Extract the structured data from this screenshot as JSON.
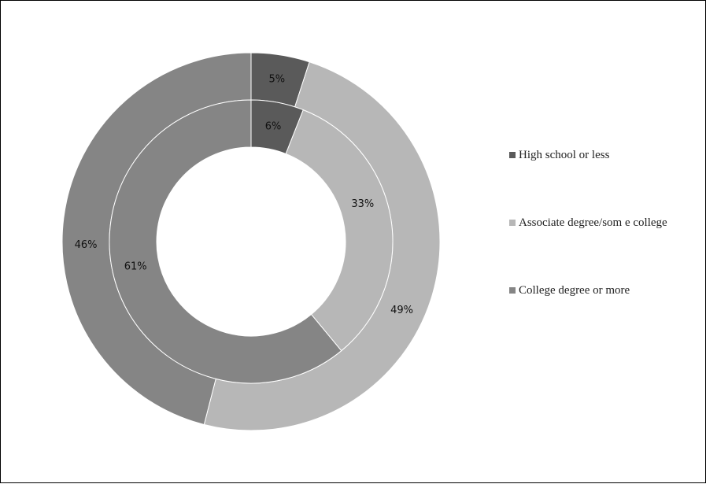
{
  "chart_data": {
    "type": "donut",
    "title": "",
    "categories": [
      "High school or less",
      "Associate degree/som e college",
      "College degree or more"
    ],
    "colors": [
      "#5a5a5a",
      "#b7b7b7",
      "#858585"
    ],
    "series": [
      {
        "ring": "outer",
        "values": [
          5,
          49,
          46
        ],
        "labels": [
          "5%",
          "49%",
          "46%"
        ]
      },
      {
        "ring": "inner",
        "values": [
          6,
          33,
          61
        ],
        "labels": [
          "6%",
          "33%",
          "61%"
        ]
      }
    ],
    "legend_position": "right"
  }
}
